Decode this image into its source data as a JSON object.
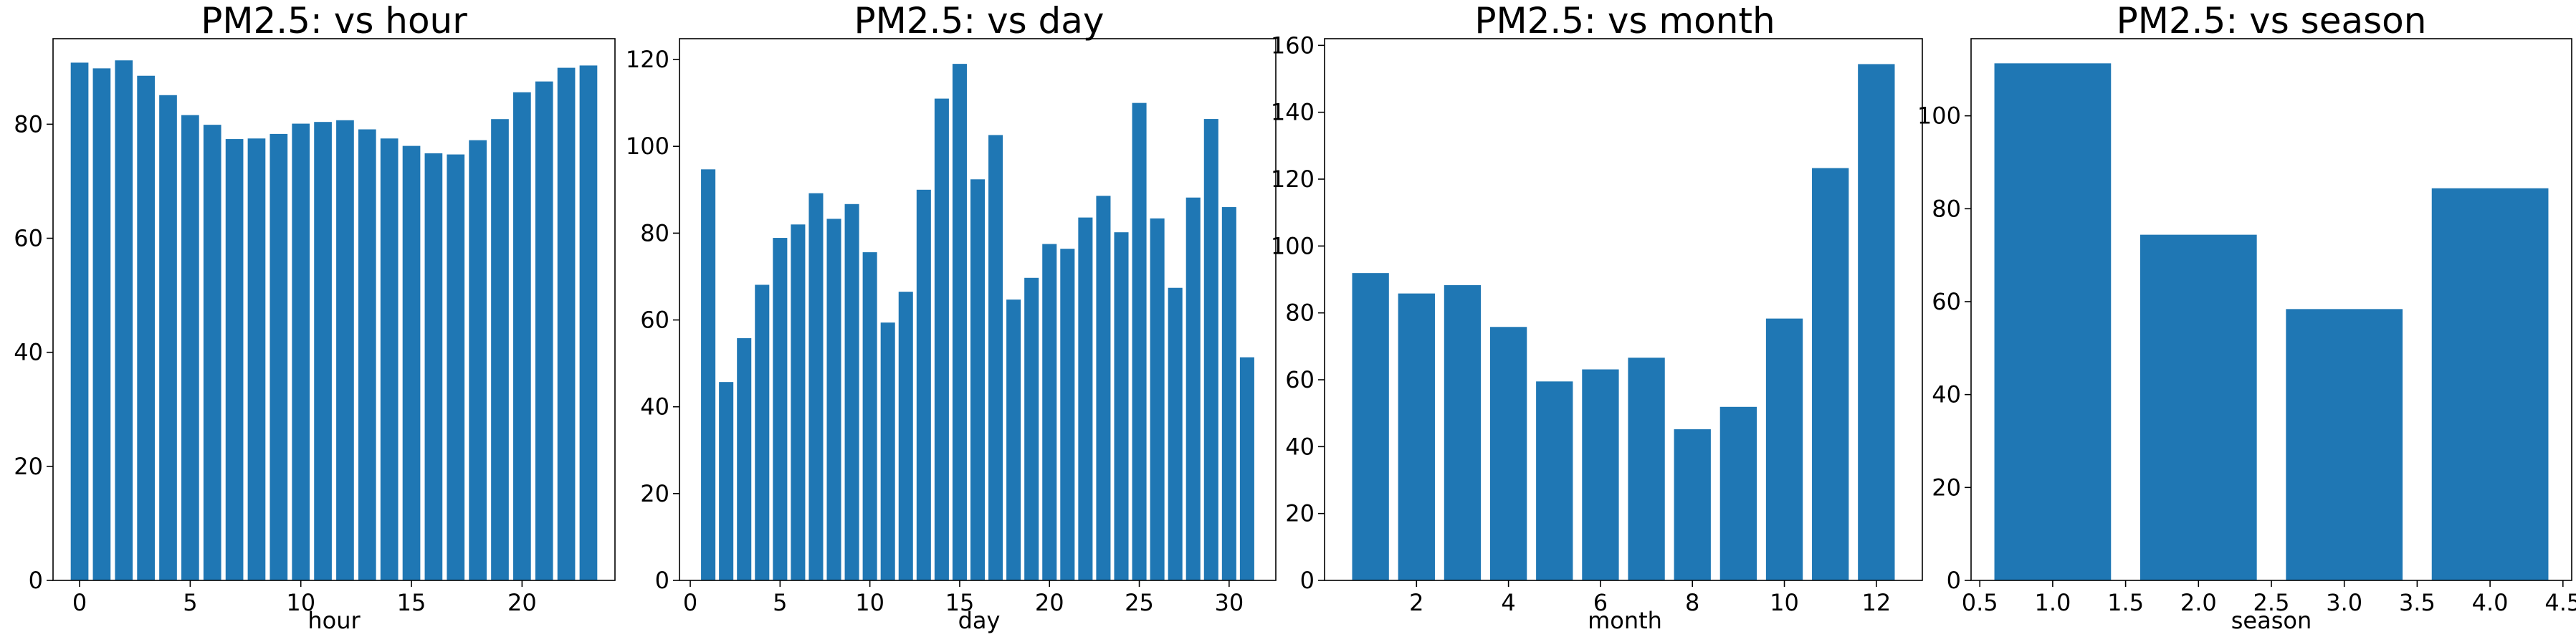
{
  "colors": {
    "bar": "#1f77b4",
    "axes": "#000000",
    "background": "#ffffff"
  },
  "chart_data": [
    {
      "type": "bar",
      "title": "PM2.5: vs hour",
      "xlabel": "hour",
      "ylabel": "",
      "grid": false,
      "x": [
        0,
        1,
        2,
        3,
        4,
        5,
        6,
        7,
        8,
        9,
        10,
        11,
        12,
        13,
        14,
        15,
        16,
        17,
        18,
        19,
        20,
        21,
        22,
        23
      ],
      "values": [
        90.8,
        89.8,
        91.2,
        88.5,
        85.1,
        81.6,
        79.9,
        77.4,
        77.5,
        78.3,
        80.1,
        80.4,
        80.7,
        79.1,
        77.5,
        76.2,
        74.9,
        74.7,
        77.2,
        80.9,
        85.6,
        87.5,
        89.9,
        90.3
      ],
      "xlim": [
        -1.2,
        24.2
      ],
      "ylim": [
        0,
        95
      ],
      "xticks": [
        0,
        5,
        10,
        15,
        20
      ],
      "xtick_labels": [
        "0",
        "5",
        "10",
        "15",
        "20"
      ],
      "yticks": [
        0,
        20,
        40,
        60,
        80
      ],
      "ytick_labels": [
        "0",
        "20",
        "40",
        "60",
        "80"
      ]
    },
    {
      "type": "bar",
      "title": "PM2.5: vs day",
      "xlabel": "day",
      "ylabel": "",
      "grid": false,
      "x": [
        1,
        2,
        3,
        4,
        5,
        6,
        7,
        8,
        9,
        10,
        11,
        12,
        13,
        14,
        15,
        16,
        17,
        18,
        19,
        20,
        21,
        22,
        23,
        24,
        25,
        26,
        27,
        28,
        29,
        30,
        31
      ],
      "values": [
        94.7,
        45.7,
        55.8,
        68.1,
        78.9,
        82.0,
        89.2,
        83.3,
        86.7,
        75.6,
        59.4,
        66.5,
        90.0,
        111.0,
        119.0,
        92.4,
        102.6,
        64.7,
        69.7,
        77.5,
        76.4,
        83.6,
        88.6,
        80.2,
        110.0,
        83.4,
        67.4,
        88.2,
        106.3,
        86.0,
        51.4
      ],
      "xlim": [
        -0.6,
        32.6
      ],
      "ylim": [
        0,
        124.8
      ],
      "xticks": [
        0,
        5,
        10,
        15,
        20,
        25,
        30
      ],
      "xtick_labels": [
        "0",
        "5",
        "10",
        "15",
        "20",
        "25",
        "30"
      ],
      "yticks": [
        0,
        20,
        40,
        60,
        80,
        100,
        120
      ],
      "ytick_labels": [
        "0",
        "20",
        "40",
        "60",
        "80",
        "100",
        "120"
      ]
    },
    {
      "type": "bar",
      "title": "PM2.5: vs month",
      "xlabel": "month",
      "ylabel": "",
      "grid": false,
      "x": [
        1,
        2,
        3,
        4,
        5,
        6,
        7,
        8,
        9,
        10,
        11,
        12
      ],
      "values": [
        91.9,
        85.8,
        88.3,
        75.8,
        59.5,
        63.1,
        66.6,
        45.2,
        51.9,
        78.3,
        123.3,
        154.4
      ],
      "xlim": [
        0.0,
        13.0
      ],
      "ylim": [
        0,
        162
      ],
      "xticks": [
        2,
        4,
        6,
        8,
        10,
        12
      ],
      "xtick_labels": [
        "2",
        "4",
        "6",
        "8",
        "10",
        "12"
      ],
      "yticks": [
        0,
        20,
        40,
        60,
        80,
        100,
        120,
        140,
        160
      ],
      "ytick_labels": [
        "0",
        "20",
        "40",
        "60",
        "80",
        "100",
        "120",
        "140",
        "160"
      ]
    },
    {
      "type": "bar",
      "title": "PM2.5: vs season",
      "xlabel": "season",
      "ylabel": "",
      "grid": false,
      "x": [
        1,
        2,
        3,
        4
      ],
      "values": [
        111.3,
        74.4,
        58.4,
        84.4
      ],
      "xlim": [
        0.44,
        4.56
      ],
      "ylim": [
        0,
        116.6
      ],
      "xticks": [
        0.5,
        1.0,
        1.5,
        2.0,
        2.5,
        3.0,
        3.5,
        4.0,
        4.5
      ],
      "xtick_labels": [
        "0.5",
        "1.0",
        "1.5",
        "2.0",
        "2.5",
        "3.0",
        "3.5",
        "4.0",
        "4.5"
      ],
      "yticks": [
        0,
        20,
        40,
        60,
        80,
        100
      ],
      "ytick_labels": [
        "0",
        "20",
        "40",
        "60",
        "80",
        "100"
      ]
    }
  ]
}
